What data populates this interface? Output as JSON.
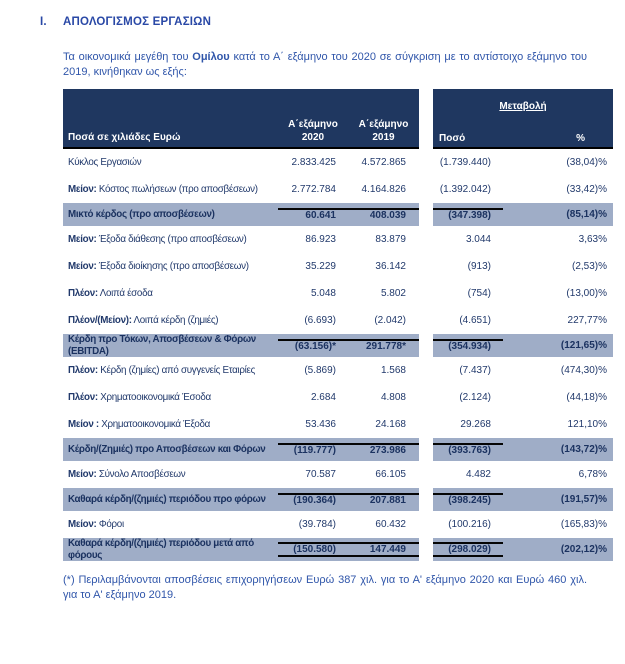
{
  "page": {
    "section_number": "I.",
    "section_title": "ΑΠΟΛΟΓΙΣΜΟΣ ΕΡΓΑΣΙΩΝ",
    "intro_before": "Τα οικονομικά μεγέθη του ",
    "intro_bold": "Ομίλου",
    "intro_after": " κατά το Α΄ εξάμηνο του 2020 σε σύγκριση με το αντίστοιχο εξάμηνο του 2019, κινήθηκαν ως εξής:",
    "footnote": "(*) Περιλαμβάνονται αποσβέσεις επιχορηγήσεων  Ευρώ 387 χιλ. για το Α' εξάμηνο 2020 και Ευρώ 460 χιλ. για το Α' εξάμηνο 2019."
  },
  "table": {
    "header": {
      "amounts_label": "Ποσά σε χιλιάδες Ευρώ",
      "col_2020_line1": "Α΄εξάμηνο",
      "col_2020_line2": "2020",
      "col_2019_line1": "Α΄εξάμηνο",
      "col_2019_line2": "2019",
      "change_label": "Μεταβολή",
      "change_amount_label": "Ποσό",
      "change_pct_label": "%"
    },
    "rows": [
      {
        "prefix": "",
        "label": "Κύκλος Εργασιών",
        "v2020": "2.833.425",
        "v2019": "4.572.865",
        "change": "(1.739.440)",
        "pct": "(38,04)%",
        "highlight": false,
        "topline": false,
        "bottomline": false
      },
      {
        "prefix": "Μείον:",
        "label": " Κόστος πωλήσεων (προ αποσβέσεων)",
        "v2020": "2.772.784",
        "v2019": "4.164.826",
        "change": "(1.392.042)",
        "pct": "(33,42)%",
        "highlight": false,
        "topline": false,
        "bottomline": false
      },
      {
        "prefix": "",
        "label": "Μικτό κέρδος (προ αποσβέσεων)",
        "v2020": "60.641",
        "v2019": "408.039",
        "change": "(347.398)",
        "pct": "(85,14)%",
        "highlight": true,
        "topline": true,
        "bottomline": false
      },
      {
        "prefix": "Μείον:",
        "label": " Έξοδα διάθεσης (προ αποσβέσεων)",
        "v2020": "86.923",
        "v2019": "83.879",
        "change": "3.044",
        "pct": "3,63%",
        "highlight": false,
        "topline": false,
        "bottomline": false
      },
      {
        "prefix": "Μείον:",
        "label": " Έξοδα διοίκησης (προ αποσβέσεων)",
        "v2020": "35.229",
        "v2019": "36.142",
        "change": "(913)",
        "pct": "(2,53)%",
        "highlight": false,
        "topline": false,
        "bottomline": false
      },
      {
        "prefix": "Πλέον:",
        "label": " Λοιπά έσοδα",
        "v2020": "5.048",
        "v2019": "5.802",
        "change": "(754)",
        "pct": "(13,00)%",
        "highlight": false,
        "topline": false,
        "bottomline": false
      },
      {
        "prefix": "Πλέον/(Μείον):",
        "label": " Λοιπά κέρδη (ζημιές)",
        "v2020": "(6.693)",
        "v2019": "(2.042)",
        "change": "(4.651)",
        "pct": "227,77%",
        "highlight": false,
        "topline": false,
        "bottomline": false
      },
      {
        "prefix": "",
        "label": "Κέρδη προ Τόκων, Αποσβέσεων & Φόρων\n(EBITDA)",
        "v2020": "(63.156)*",
        "v2019": "291.778*",
        "change": "(354.934)",
        "pct": "(121,65)%",
        "highlight": true,
        "topline": true,
        "bottomline": false
      },
      {
        "prefix": "Πλέον:",
        "label": " Κέρδη (ζημίες) από συγγενείς Εταιρίες",
        "v2020": "(5.869)",
        "v2019": "1.568",
        "change": "(7.437)",
        "pct": "(474,30)%",
        "highlight": false,
        "topline": false,
        "bottomline": false
      },
      {
        "prefix": "Πλέον:",
        "label": " Χρηματοοικονομικά Έσοδα",
        "v2020": "2.684",
        "v2019": "4.808",
        "change": "(2.124)",
        "pct": "(44,18)%",
        "highlight": false,
        "topline": false,
        "bottomline": false
      },
      {
        "prefix": "Μείον :",
        "label": " Χρηματοοικονομικά Έξοδα",
        "v2020": "53.436",
        "v2019": "24.168",
        "change": "29.268",
        "pct": "121,10%",
        "highlight": false,
        "topline": false,
        "bottomline": false
      },
      {
        "prefix": "",
        "label": "Κέρδη/(Ζημιές) προ Αποσβέσεων και Φόρων",
        "v2020": "(119.777)",
        "v2019": "273.986",
        "change": "(393.763)",
        "pct": "(143,72)%",
        "highlight": true,
        "topline": true,
        "bottomline": false
      },
      {
        "prefix": "Μείον:",
        "label": " Σύνολο Αποσβέσεων",
        "v2020": "70.587",
        "v2019": "66.105",
        "change": "4.482",
        "pct": "6,78%",
        "highlight": false,
        "topline": false,
        "bottomline": false
      },
      {
        "prefix": "",
        "label": "Καθαρά κέρδη/(ζημιές) περιόδου προ φόρων",
        "v2020": "(190.364)",
        "v2019": "207.881",
        "change": "(398.245)",
        "pct": "(191,57)%",
        "highlight": true,
        "topline": true,
        "bottomline": false
      },
      {
        "prefix": "Μείον:",
        "label": " Φόροι",
        "v2020": "(39.784)",
        "v2019": "60.432",
        "change": "(100.216)",
        "pct": "(165,83)%",
        "highlight": false,
        "topline": false,
        "bottomline": false
      },
      {
        "prefix": "",
        "label": "Καθαρά κέρδη/(ζημιές) περιόδου μετά από\nφόρους",
        "v2020": "(150.580)",
        "v2019": "147.449",
        "change": "(298.029)",
        "pct": "(202,12)%",
        "highlight": true,
        "topline": true,
        "bottomline": true
      }
    ]
  },
  "colors": {
    "header_bg": "#1f3760",
    "highlight_bg": "#9fadc7",
    "table_text": "#21396b",
    "accent_blue": "#2948a6",
    "body_blue": "#3056aa",
    "rule_black": "#050505"
  }
}
